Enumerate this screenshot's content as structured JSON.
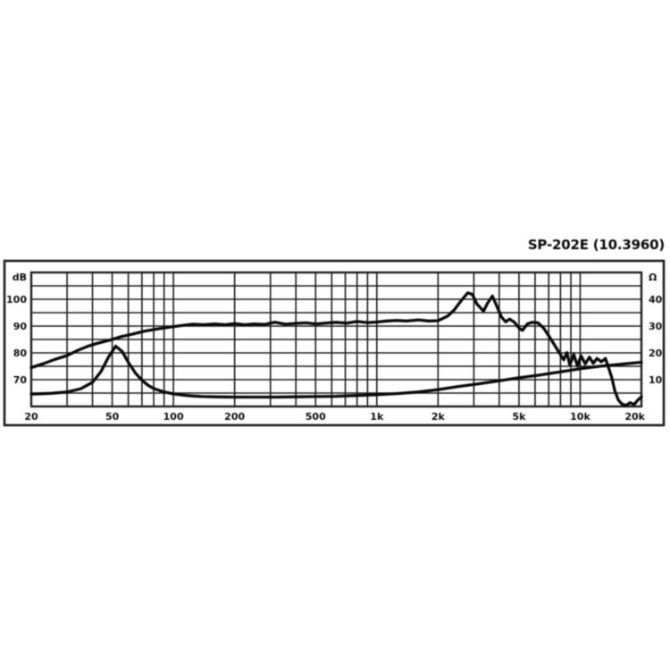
{
  "header": {
    "title": "SP-202E (10.3960)"
  },
  "colors": {
    "line": "#0a0a0a",
    "grid": "#1e1e1e",
    "text": "#0d0d0d",
    "background": "#ffffff"
  },
  "chart_data": {
    "type": "line",
    "title": "SP-202E (10.3960)",
    "xlabel": "",
    "ylabel_left": "dB",
    "ylabel_right": "Ω",
    "x_axis": {
      "scale": "log",
      "unit": "Hz",
      "min": 20,
      "max": 20000,
      "gridlines": [
        20,
        30,
        40,
        50,
        60,
        70,
        80,
        90,
        100,
        200,
        300,
        400,
        500,
        600,
        700,
        800,
        900,
        1000,
        2000,
        3000,
        4000,
        5000,
        6000,
        7000,
        8000,
        9000,
        10000,
        20000
      ],
      "tick_labels": [
        {
          "value": 20,
          "label": "20"
        },
        {
          "value": 50,
          "label": "50"
        },
        {
          "value": 100,
          "label": "100"
        },
        {
          "value": 200,
          "label": "200"
        },
        {
          "value": 500,
          "label": "500"
        },
        {
          "value": 1000,
          "label": "1k"
        },
        {
          "value": 2000,
          "label": "2k"
        },
        {
          "value": 5000,
          "label": "5k"
        },
        {
          "value": 10000,
          "label": "10k"
        },
        {
          "value": 20000,
          "label": "20k"
        }
      ]
    },
    "y_left": {
      "unit_label": "dB",
      "min": 60,
      "max": 110,
      "gridline_step": 5,
      "ticks": [
        100,
        90,
        80,
        70
      ]
    },
    "y_right": {
      "unit_label": "Ω",
      "min": 0,
      "max": 50,
      "ticks": [
        40,
        30,
        20,
        10
      ]
    },
    "grid": true,
    "legend": "none",
    "series": [
      {
        "name": "frequency-response",
        "axis": "left",
        "unit": "dB",
        "points": [
          [
            20,
            74.5
          ],
          [
            23,
            76
          ],
          [
            26,
            77.5
          ],
          [
            30,
            79
          ],
          [
            34,
            81
          ],
          [
            38,
            82.5
          ],
          [
            42,
            83.5
          ],
          [
            46,
            84.3
          ],
          [
            50,
            85
          ],
          [
            55,
            86
          ],
          [
            63,
            87
          ],
          [
            71,
            88
          ],
          [
            80,
            88.7
          ],
          [
            90,
            89.3
          ],
          [
            100,
            89.8
          ],
          [
            112,
            90.3
          ],
          [
            125,
            90.7
          ],
          [
            140,
            90.5
          ],
          [
            160,
            90.8
          ],
          [
            180,
            90.5
          ],
          [
            200,
            90.9
          ],
          [
            224,
            90.5
          ],
          [
            250,
            90.8
          ],
          [
            280,
            90.6
          ],
          [
            315,
            91.4
          ],
          [
            355,
            90.7
          ],
          [
            400,
            91
          ],
          [
            450,
            91.2
          ],
          [
            500,
            90.8
          ],
          [
            560,
            91.1
          ],
          [
            630,
            91.4
          ],
          [
            710,
            91.1
          ],
          [
            800,
            91.7
          ],
          [
            900,
            91.3
          ],
          [
            1000,
            91.5
          ],
          [
            1120,
            91.9
          ],
          [
            1250,
            92.1
          ],
          [
            1400,
            91.9
          ],
          [
            1600,
            92.3
          ],
          [
            1800,
            91.9
          ],
          [
            2000,
            92
          ],
          [
            2240,
            93.8
          ],
          [
            2400,
            96
          ],
          [
            2600,
            99.5
          ],
          [
            2800,
            102.4
          ],
          [
            2950,
            101.8
          ],
          [
            3100,
            98.3
          ],
          [
            3350,
            95.6
          ],
          [
            3500,
            98.5
          ],
          [
            3700,
            101.2
          ],
          [
            3900,
            97.2
          ],
          [
            4100,
            93.4
          ],
          [
            4300,
            91.6
          ],
          [
            4500,
            92.6
          ],
          [
            4750,
            91.4
          ],
          [
            5000,
            89.3
          ],
          [
            5200,
            88.4
          ],
          [
            5500,
            90.8
          ],
          [
            5800,
            91.4
          ],
          [
            6200,
            91.2
          ],
          [
            6600,
            89.3
          ],
          [
            7000,
            86.4
          ],
          [
            7500,
            82.8
          ],
          [
            8000,
            79.3
          ],
          [
            8300,
            77.4
          ],
          [
            8600,
            80.1
          ],
          [
            8900,
            75.4
          ],
          [
            9300,
            79.4
          ],
          [
            9700,
            75.1
          ],
          [
            10100,
            78.9
          ],
          [
            10600,
            75.9
          ],
          [
            11100,
            78.4
          ],
          [
            11600,
            76.1
          ],
          [
            12100,
            77.9
          ],
          [
            12700,
            76.7
          ],
          [
            13300,
            77.9
          ],
          [
            13800,
            74.4
          ],
          [
            14300,
            70.8
          ],
          [
            14800,
            65.9
          ],
          [
            15400,
            62.4
          ],
          [
            16000,
            61
          ],
          [
            16800,
            60.4
          ],
          [
            17600,
            61.4
          ],
          [
            18400,
            60.7
          ],
          [
            19200,
            62.4
          ],
          [
            20000,
            63.6
          ]
        ]
      },
      {
        "name": "impedance",
        "axis": "right",
        "unit": "Ω",
        "points": [
          [
            20,
            4.6
          ],
          [
            25,
            4.9
          ],
          [
            30,
            5.4
          ],
          [
            35,
            6.6
          ],
          [
            40,
            9
          ],
          [
            44,
            13
          ],
          [
            48,
            18.5
          ],
          [
            52,
            22.5
          ],
          [
            56,
            20.5
          ],
          [
            60,
            16.5
          ],
          [
            65,
            12.5
          ],
          [
            70,
            9.8
          ],
          [
            75,
            7.9
          ],
          [
            80,
            6.7
          ],
          [
            90,
            5.4
          ],
          [
            100,
            4.7
          ],
          [
            112,
            4.2
          ],
          [
            125,
            3.9
          ],
          [
            140,
            3.7
          ],
          [
            160,
            3.6
          ],
          [
            200,
            3.5
          ],
          [
            250,
            3.5
          ],
          [
            315,
            3.5
          ],
          [
            400,
            3.6
          ],
          [
            500,
            3.7
          ],
          [
            630,
            3.8
          ],
          [
            800,
            4.1
          ],
          [
            1000,
            4.4
          ],
          [
            1250,
            4.8
          ],
          [
            1600,
            5.4
          ],
          [
            2000,
            6.3
          ],
          [
            2500,
            7.4
          ],
          [
            3150,
            8.4
          ],
          [
            4000,
            9.6
          ],
          [
            5000,
            10.7
          ],
          [
            6300,
            11.7
          ],
          [
            8000,
            12.9
          ],
          [
            10000,
            14.1
          ],
          [
            12500,
            15
          ],
          [
            16000,
            15.8
          ],
          [
            20000,
            16.5
          ]
        ]
      }
    ]
  }
}
